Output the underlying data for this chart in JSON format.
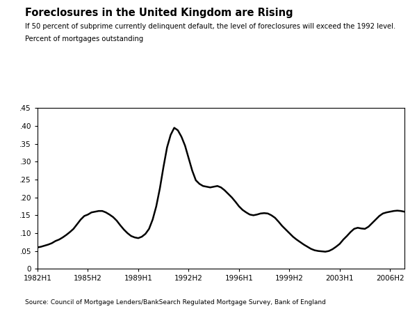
{
  "title": "Foreclosures in the United Kingdom are Rising",
  "subtitle1": "If 50 percent of subprime currently delinquent default, the level of foreclosures will exceed the 1992 level.",
  "subtitle2": "Percent of mortgages outstanding",
  "source": "Source: Council of Mortgage Lenders/BankSearch Regulated Mortgage Survey, Bank of England",
  "ylim": [
    0,
    0.45
  ],
  "yticks": [
    0,
    0.05,
    0.1,
    0.15,
    0.2,
    0.25,
    0.3,
    0.35,
    0.4,
    0.45
  ],
  "xtick_labels": [
    "1982H1",
    "1985H2",
    "1989H1",
    "1992H2",
    "1996H1",
    "1999H2",
    "2003H1",
    "2006H2"
  ],
  "line_color": "#000000",
  "line_width": 1.8,
  "background_color": "#ffffff",
  "x_tick_positions": [
    0,
    7,
    14,
    21,
    28,
    35,
    42,
    49
  ],
  "x": [
    0,
    0.5,
    1,
    1.5,
    2,
    2.5,
    3,
    3.5,
    4,
    4.5,
    5,
    5.5,
    6,
    6.5,
    7,
    7.5,
    8,
    8.5,
    9,
    9.5,
    10,
    10.5,
    11,
    11.5,
    12,
    12.5,
    13,
    13.5,
    14,
    14.5,
    15,
    15.5,
    16,
    16.5,
    17,
    17.5,
    18,
    18.5,
    19,
    19.5,
    20,
    20.5,
    21,
    21.5,
    22,
    22.5,
    23,
    23.5,
    24,
    24.5,
    25,
    25.5,
    26,
    26.5,
    27,
    27.5,
    28,
    28.5,
    29,
    29.5,
    30,
    30.5,
    31,
    31.5,
    32,
    32.5,
    33,
    33.5,
    34,
    34.5,
    35,
    35.5,
    36,
    36.5,
    37,
    37.5,
    38,
    38.5,
    39,
    39.5,
    40,
    40.5,
    41,
    41.5,
    42,
    42.5,
    43,
    43.5,
    44,
    44.5,
    45,
    45.5,
    46,
    46.5,
    47,
    47.5,
    48,
    48.5,
    49,
    49.5,
    50,
    50.5,
    51
  ],
  "y": [
    0.06,
    0.062,
    0.065,
    0.068,
    0.072,
    0.078,
    0.082,
    0.088,
    0.095,
    0.103,
    0.112,
    0.125,
    0.138,
    0.148,
    0.152,
    0.158,
    0.16,
    0.162,
    0.162,
    0.158,
    0.152,
    0.145,
    0.135,
    0.122,
    0.11,
    0.1,
    0.092,
    0.088,
    0.086,
    0.09,
    0.098,
    0.112,
    0.138,
    0.175,
    0.225,
    0.285,
    0.34,
    0.375,
    0.395,
    0.388,
    0.37,
    0.345,
    0.31,
    0.275,
    0.248,
    0.238,
    0.232,
    0.23,
    0.228,
    0.23,
    0.232,
    0.228,
    0.22,
    0.21,
    0.2,
    0.188,
    0.175,
    0.165,
    0.158,
    0.152,
    0.15,
    0.152,
    0.155,
    0.156,
    0.155,
    0.15,
    0.143,
    0.132,
    0.12,
    0.11,
    0.1,
    0.09,
    0.082,
    0.075,
    0.068,
    0.062,
    0.056,
    0.052,
    0.05,
    0.049,
    0.048,
    0.05,
    0.055,
    0.062,
    0.07,
    0.082,
    0.092,
    0.103,
    0.112,
    0.115,
    0.113,
    0.112,
    0.118,
    0.128,
    0.138,
    0.148,
    0.155,
    0.158,
    0.16,
    0.162,
    0.163,
    0.162,
    0.16
  ]
}
